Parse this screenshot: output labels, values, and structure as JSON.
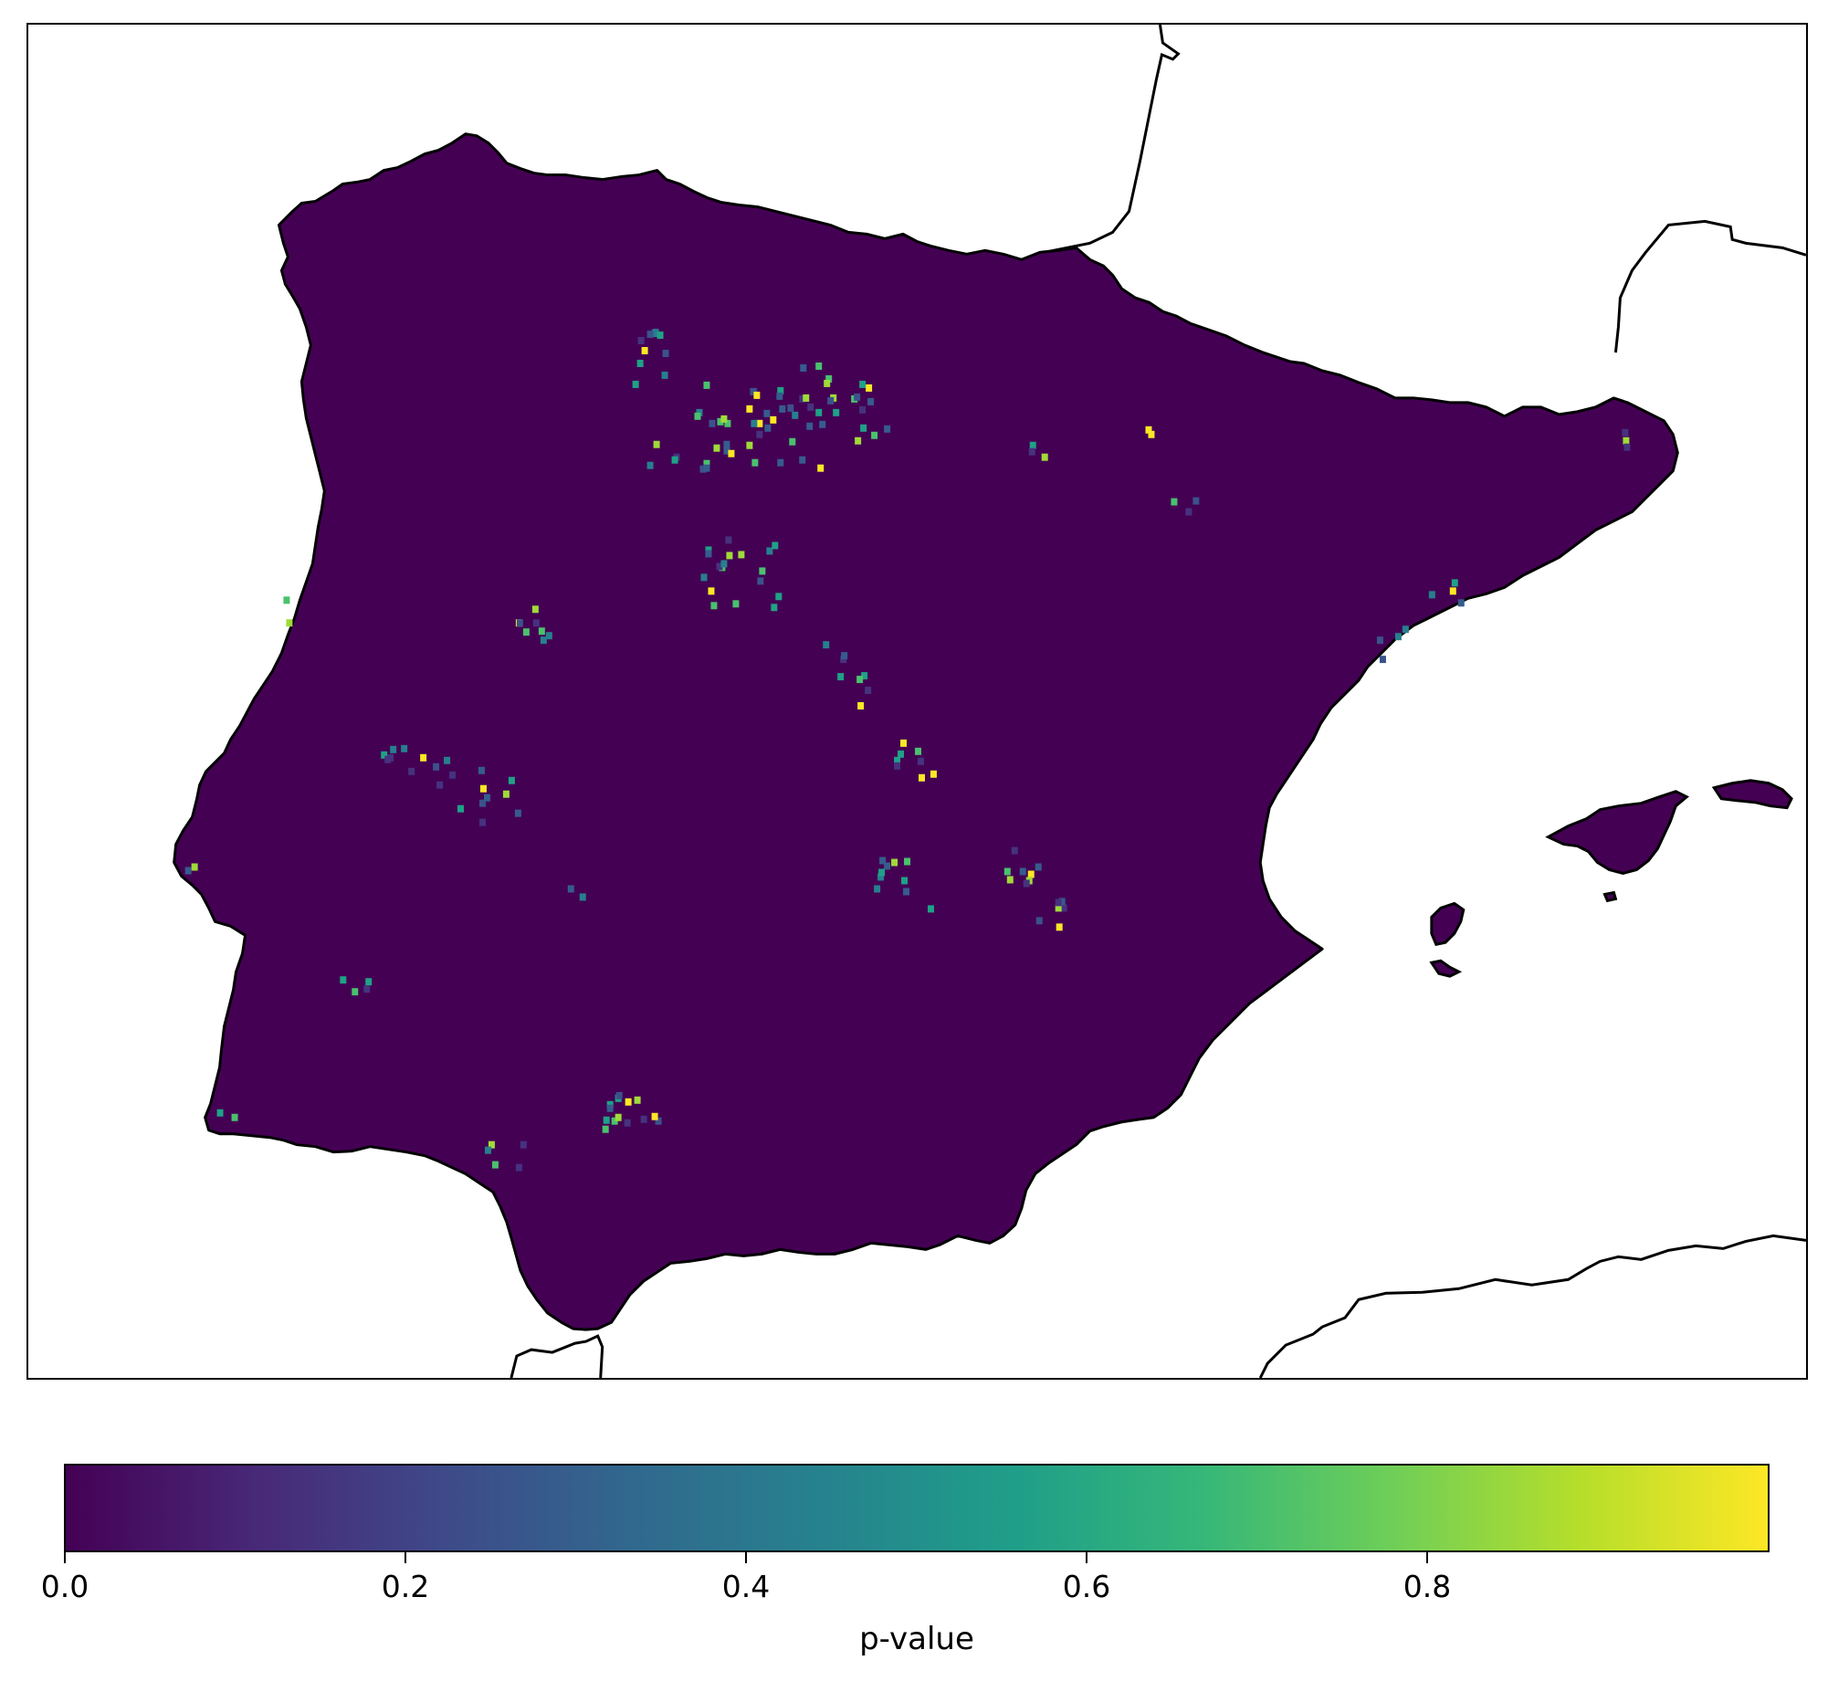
{
  "colorbar": {
    "label": "p-value",
    "ticks": [
      "0.0",
      "0.2",
      "0.4",
      "0.6",
      "0.8"
    ],
    "tick_values": [
      0.0,
      0.2,
      0.4,
      0.6,
      0.8
    ],
    "range": [
      0.0,
      1.0
    ],
    "colormap": "viridis",
    "stops": [
      "#440154",
      "#482878",
      "#3e4a89",
      "#31688e",
      "#26828e",
      "#1f9e89",
      "#35b779",
      "#6ece58",
      "#b5de2b",
      "#fde725"
    ]
  },
  "map": {
    "region": "Iberian Peninsula",
    "background_color": "#ffffff",
    "land_fill": "#440154",
    "coastline_color": "#000000",
    "dominant_value": 0.0
  }
}
